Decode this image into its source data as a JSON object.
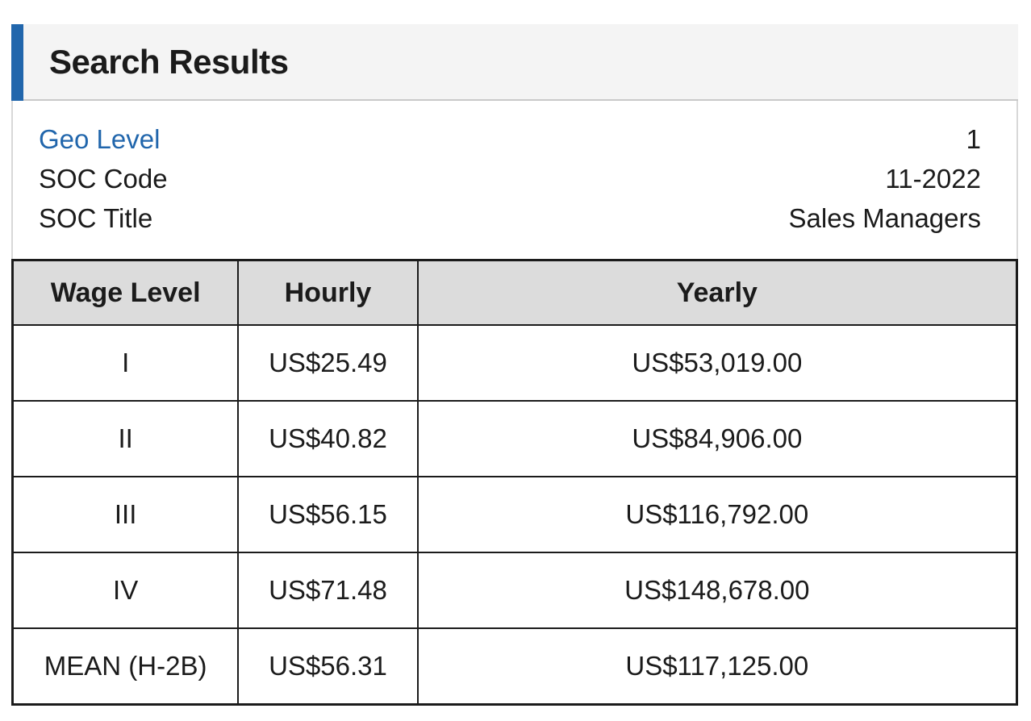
{
  "panel": {
    "title": "Search Results"
  },
  "info": {
    "rows": [
      {
        "label": "Geo Level",
        "value": "1",
        "is_link": true
      },
      {
        "label": "SOC Code",
        "value": "11-2022",
        "is_link": false
      },
      {
        "label": "SOC Title",
        "value": "Sales Managers",
        "is_link": false
      }
    ]
  },
  "table": {
    "columns": [
      "Wage Level",
      "Hourly",
      "Yearly"
    ],
    "rows": [
      {
        "wage_level": "I",
        "hourly": "US$25.49",
        "yearly": "US$53,019.00"
      },
      {
        "wage_level": "II",
        "hourly": "US$40.82",
        "yearly": "US$84,906.00"
      },
      {
        "wage_level": "III",
        "hourly": "US$56.15",
        "yearly": "US$116,792.00"
      },
      {
        "wage_level": "IV",
        "hourly": "US$71.48",
        "yearly": "US$148,678.00"
      },
      {
        "wage_level": "MEAN (H-2B)",
        "hourly": "US$56.31",
        "yearly": "US$117,125.00"
      }
    ]
  },
  "colors": {
    "accent_blue": "#2166ac",
    "link_blue": "#2166ac",
    "panel_header_bg": "#f4f4f4",
    "panel_border_gray": "#d8d8d8",
    "table_header_bg": "#dcdcdc",
    "table_border_dark": "#1b1b1b",
    "text_dark": "#1b1b1b"
  }
}
